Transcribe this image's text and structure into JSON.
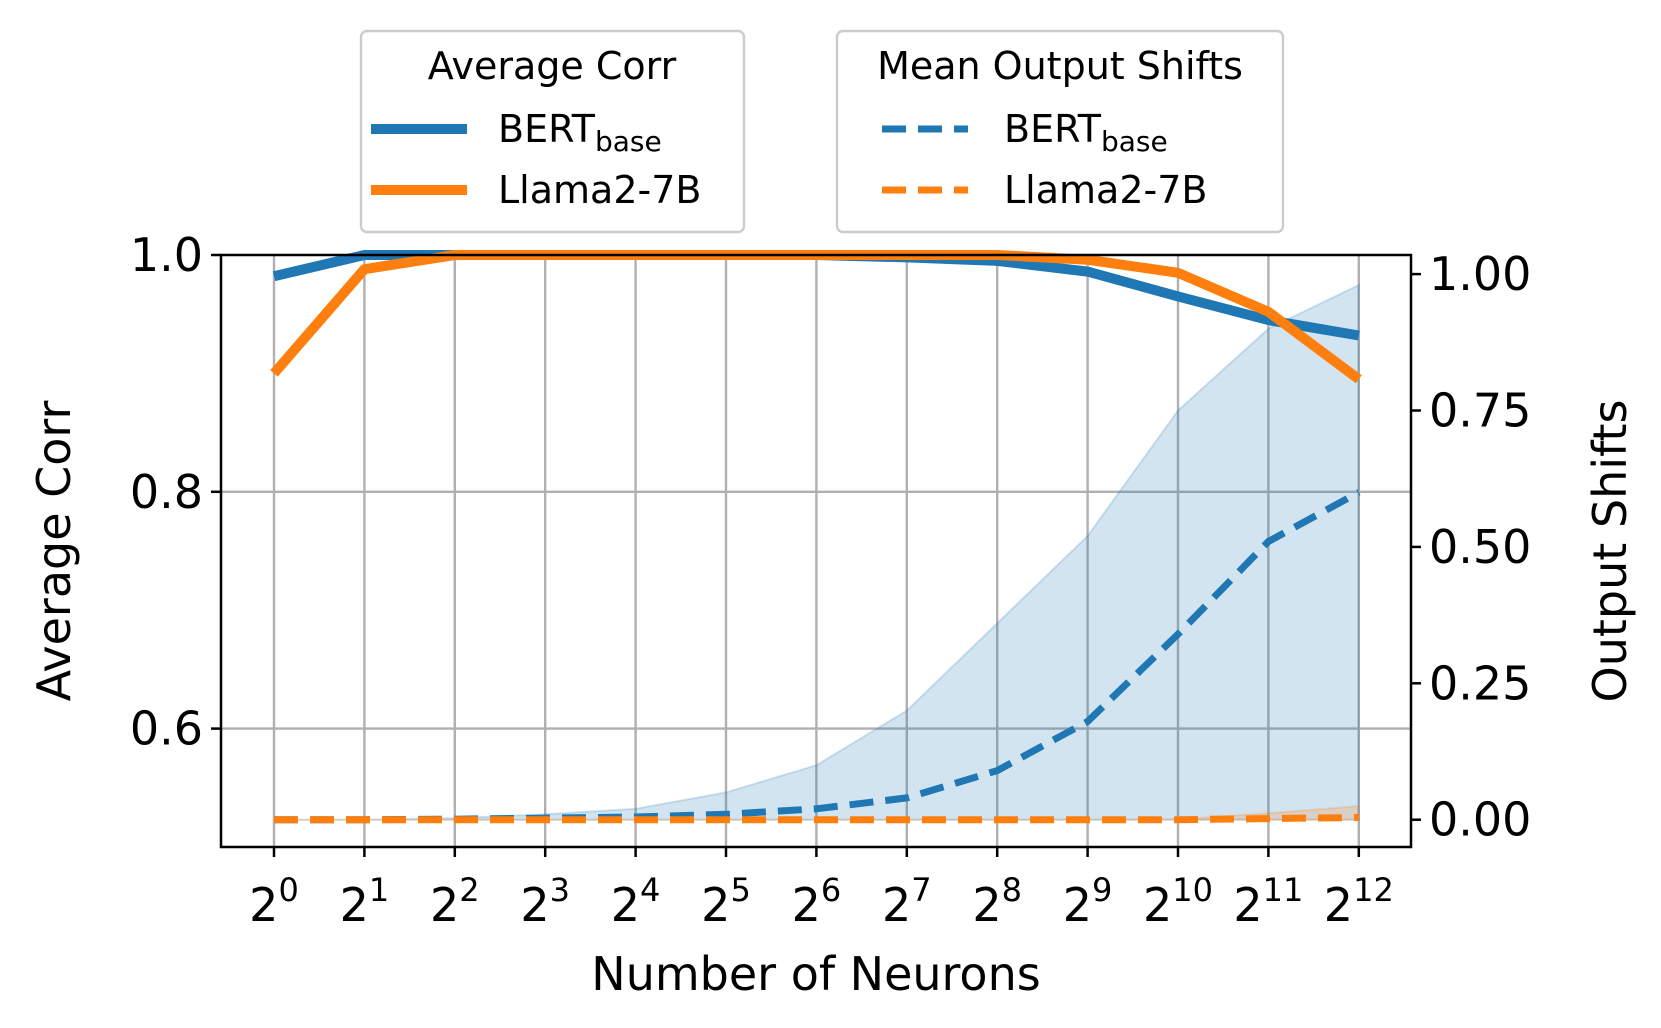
{
  "chart_data": {
    "type": "line",
    "xlabel": "Number of Neurons",
    "ylabel_left": "Average Corr",
    "ylabel_right": "Output Shifts",
    "x_ticks": [
      {
        "base": "2",
        "exp": "0"
      },
      {
        "base": "2",
        "exp": "1"
      },
      {
        "base": "2",
        "exp": "2"
      },
      {
        "base": "2",
        "exp": "3"
      },
      {
        "base": "2",
        "exp": "4"
      },
      {
        "base": "2",
        "exp": "5"
      },
      {
        "base": "2",
        "exp": "6"
      },
      {
        "base": "2",
        "exp": "7"
      },
      {
        "base": "2",
        "exp": "8"
      },
      {
        "base": "2",
        "exp": "9"
      },
      {
        "base": "2",
        "exp": "10"
      },
      {
        "base": "2",
        "exp": "11"
      },
      {
        "base": "2",
        "exp": "12"
      }
    ],
    "x_log2": [
      0,
      1,
      2,
      3,
      4,
      5,
      6,
      7,
      8,
      9,
      10,
      11,
      12
    ],
    "y_left": {
      "lim": [
        0.5,
        1.0
      ],
      "ticks": [
        "0.6",
        "0.8",
        "1.0"
      ],
      "tick_values": [
        0.6,
        0.8,
        1.0
      ]
    },
    "y_right": {
      "lim": [
        -0.05,
        1.035
      ],
      "ticks": [
        "0.00",
        "0.25",
        "0.50",
        "0.75",
        "1.00"
      ],
      "tick_values": [
        0.0,
        0.25,
        0.5,
        0.75,
        1.0
      ]
    },
    "series_corr": [
      {
        "name": "BERT",
        "sub": "base",
        "color": "#1f77b4",
        "values": [
          0.982,
          1.0,
          1.0,
          1.0,
          1.0,
          1.0,
          1.0,
          0.998,
          0.995,
          0.986,
          0.965,
          0.945,
          0.932
        ]
      },
      {
        "name": "Llama2-7B",
        "sub": "",
        "color": "#ff7f0e",
        "values": [
          0.9,
          0.988,
          1.0,
          1.0,
          1.0,
          1.0,
          1.0,
          1.0,
          1.0,
          0.996,
          0.985,
          0.952,
          0.895
        ]
      }
    ],
    "series_shift": [
      {
        "name": "BERT",
        "sub": "base",
        "color": "#1f77b4",
        "values": [
          0.0,
          0.0,
          0.001,
          0.003,
          0.005,
          0.01,
          0.02,
          0.04,
          0.09,
          0.18,
          0.34,
          0.51,
          0.6
        ],
        "band_upper": [
          0.0,
          0.0,
          0.003,
          0.01,
          0.02,
          0.05,
          0.1,
          0.2,
          0.36,
          0.52,
          0.75,
          0.9,
          0.98
        ],
        "band_lower": [
          0.0,
          0.0,
          0.0,
          0.0,
          0.0,
          0.0,
          0.0,
          0.0,
          0.0,
          0.0,
          0.0,
          0.0,
          0.0
        ]
      },
      {
        "name": "Llama2-7B",
        "sub": "",
        "color": "#ff7f0e",
        "values": [
          0.0,
          0.0,
          0.0,
          0.0,
          0.0,
          0.0,
          0.0,
          0.0,
          0.0,
          0.0,
          0.0,
          0.002,
          0.004
        ],
        "band_upper": [
          0.0,
          0.0,
          0.0,
          0.0,
          0.0,
          0.0,
          0.0,
          0.0,
          0.0,
          0.0,
          0.001,
          0.012,
          0.025
        ],
        "band_lower": [
          0.0,
          0.0,
          0.0,
          0.0,
          0.0,
          0.0,
          0.0,
          0.0,
          0.0,
          0.0,
          0.0,
          0.0,
          0.0
        ]
      }
    ],
    "legend_corr_title": "Average Corr",
    "legend_shift_title": "Mean Output Shifts",
    "grid": true,
    "legend_position": "above"
  }
}
